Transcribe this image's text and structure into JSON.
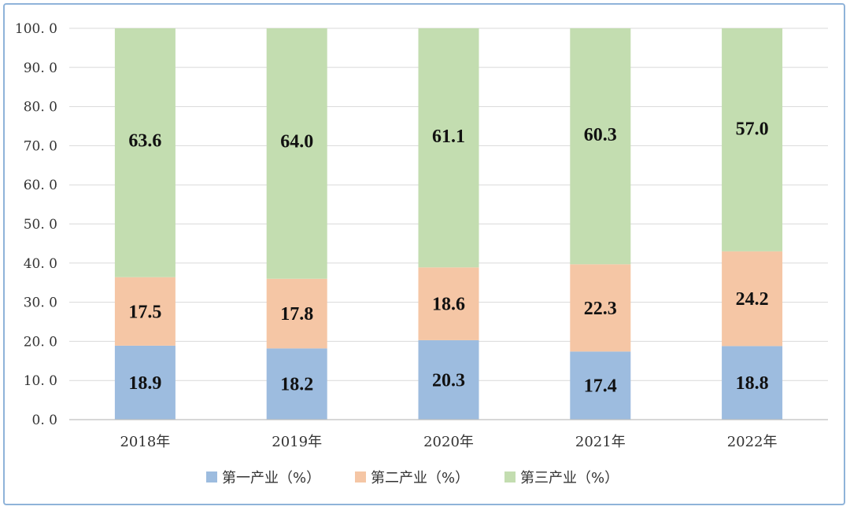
{
  "chart_data": {
    "type": "bar",
    "stacked": true,
    "categories": [
      "2018年",
      "2019年",
      "2020年",
      "2021年",
      "2022年"
    ],
    "series": [
      {
        "name": "第一产业（%）",
        "color": "#9dbcdf",
        "values": [
          18.9,
          18.2,
          20.3,
          17.4,
          18.8
        ]
      },
      {
        "name": "第二产业（%）",
        "color": "#f5c6a5",
        "values": [
          17.5,
          17.8,
          18.6,
          22.3,
          24.2
        ]
      },
      {
        "name": "第三产业（%）",
        "color": "#c3ddb0",
        "values": [
          63.6,
          64.0,
          61.1,
          60.3,
          57.0
        ]
      }
    ],
    "yticks": [
      "0. 0",
      "10. 0",
      "20. 0",
      "30. 0",
      "40. 0",
      "50. 0",
      "60. 0",
      "70. 0",
      "80. 0",
      "90. 0",
      "100. 0"
    ],
    "ylim": [
      0,
      100
    ],
    "grid": true,
    "legend_position": "bottom"
  }
}
